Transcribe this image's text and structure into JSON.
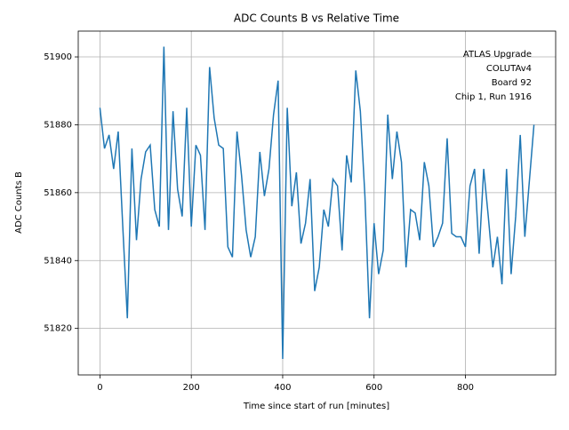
{
  "chart_data": {
    "type": "line",
    "title": "ADC Counts B vs Relative Time",
    "xlabel": "Time since start of run [minutes]",
    "ylabel": "ADC Counts B",
    "annotation": [
      "ATLAS Upgrade",
      "COLUTAv4",
      "Board 92",
      "Chip 1, Run 1916"
    ],
    "x": [
      0,
      10,
      20,
      30,
      40,
      50,
      60,
      70,
      80,
      90,
      100,
      110,
      120,
      130,
      140,
      150,
      160,
      170,
      180,
      190,
      200,
      210,
      220,
      230,
      240,
      250,
      260,
      270,
      280,
      290,
      300,
      310,
      320,
      330,
      340,
      350,
      360,
      370,
      380,
      390,
      400,
      410,
      420,
      430,
      440,
      450,
      460,
      470,
      480,
      490,
      500,
      510,
      520,
      530,
      540,
      550,
      560,
      570,
      580,
      590,
      600,
      610,
      620,
      630,
      640,
      650,
      660,
      670,
      680,
      690,
      700,
      710,
      720,
      730,
      740,
      750,
      760,
      770,
      780,
      790,
      800,
      810,
      820,
      830,
      840,
      850,
      860,
      870,
      880,
      890,
      900,
      910,
      920,
      930,
      950
    ],
    "series": [
      {
        "name": "ADC Counts B",
        "color": "#1f77b4",
        "values": [
          51885,
          51873,
          51877,
          51867,
          51878,
          51850,
          51823,
          51873,
          51846,
          51864,
          51872,
          51874,
          51855,
          51850,
          51903,
          51849,
          51884,
          51861,
          51853,
          51885,
          51850,
          51874,
          51871,
          51849,
          51897,
          51882,
          51874,
          51873,
          51844,
          51841,
          51878,
          51865,
          51849,
          51841,
          51847,
          51872,
          51859,
          51867,
          51883,
          51893,
          51811,
          51885,
          51856,
          51866,
          51845,
          51851,
          51864,
          51831,
          51838,
          51855,
          51850,
          51864,
          51862,
          51843,
          51871,
          51863,
          51896,
          51884,
          51859,
          51823,
          51851,
          51836,
          51843,
          51883,
          51864,
          51878,
          51869,
          51838,
          51855,
          51854,
          51846,
          51869,
          51862,
          51844,
          51847,
          51851,
          51876,
          51848,
          51847,
          51847,
          51844,
          51862,
          51867,
          51842,
          51867,
          51853,
          51838,
          51847,
          51833,
          51867,
          51836,
          51853,
          51877,
          51847,
          51880
        ]
      }
    ],
    "xlim": [
      -47.5,
      997.5
    ],
    "xticks": [
      0,
      200,
      400,
      600,
      800
    ],
    "ylim": [
      51806.3,
      51907.6
    ],
    "yticks": [
      51820,
      51840,
      51860,
      51880,
      51900
    ],
    "grid": true
  }
}
